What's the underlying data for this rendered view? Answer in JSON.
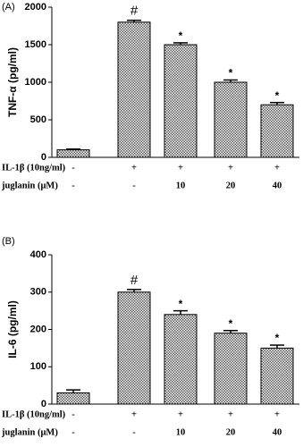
{
  "chart_data": [
    {
      "type": "bar",
      "panel": "(A)",
      "y_label": "TNF-α (pg/ml)",
      "values": [
        100,
        1800,
        1500,
        1000,
        700
      ],
      "errors": [
        10,
        25,
        25,
        30,
        30
      ],
      "annotations": [
        null,
        "#",
        "*",
        "*",
        "*"
      ],
      "ylim": [
        0,
        2000
      ],
      "yticks": [
        0,
        500,
        1000,
        1500,
        2000
      ],
      "conditions": [
        {
          "label": "IL-1β (10ng/ml)",
          "values": [
            "-",
            "+",
            "+",
            "+",
            "+"
          ]
        },
        {
          "label": "juglanin (μM)",
          "values": [
            "-",
            "-",
            "10",
            "20",
            "40"
          ]
        }
      ]
    },
    {
      "type": "bar",
      "panel": "(B)",
      "y_label": "IL-6 (pg/ml)",
      "values": [
        30,
        300,
        240,
        190,
        150
      ],
      "errors": [
        8,
        7,
        10,
        7,
        8
      ],
      "annotations": [
        null,
        "#",
        "*",
        "*",
        "*"
      ],
      "ylim": [
        0,
        400
      ],
      "yticks": [
        0,
        100,
        200,
        300,
        400
      ],
      "conditions": [
        {
          "label": "IL-1β (10ng/ml)",
          "values": [
            "-",
            "+",
            "+",
            "+",
            "+"
          ]
        },
        {
          "label": "juglanin (μM)",
          "values": [
            "-",
            "-",
            "10",
            "20",
            "40"
          ]
        }
      ]
    }
  ]
}
